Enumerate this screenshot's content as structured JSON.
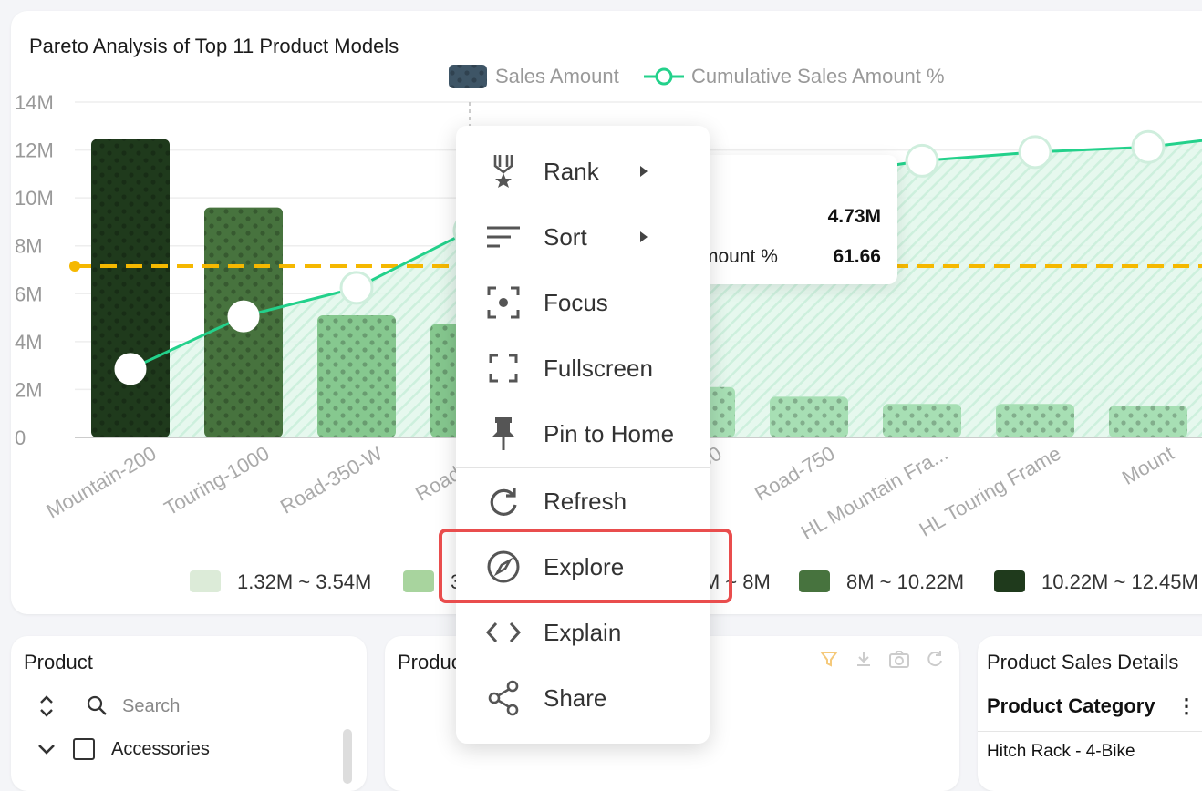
{
  "chart": {
    "title": "Pareto Analysis of Top 11 Product Models",
    "legend": {
      "bar": "Sales Amount",
      "line": "Cumulative Sales Amount %"
    },
    "y_ticks": [
      "14M",
      "12M",
      "10M",
      "8M",
      "6M",
      "4M",
      "2M",
      "0"
    ],
    "categories": [
      "Mountain-200",
      "Touring-1000",
      "Road-350-W",
      "Road-250",
      "Touring-2000",
      "Road-750",
      "HL Mountain Fra...",
      "HL Touring Frame",
      "Mount"
    ],
    "color_legend": [
      "1.32M ~ 3.54M",
      "3.54M ~ 5.77M",
      "5.77M ~ 8M",
      "8M ~ 10.22M",
      "10.22M ~ 12.45M"
    ],
    "colors": {
      "bar_darkest": "#1f3a1c",
      "bar_dark": "#47733e",
      "bar_mid": "#86c88f",
      "bar_light": "#a7dfb4",
      "line": "#23d18b",
      "threshold": "#f5b800"
    }
  },
  "chart_data": {
    "type": "bar",
    "title": "Pareto Analysis of Top 11 Product Models",
    "categories": [
      "Mountain-200",
      "Touring-1000",
      "Road-350-W",
      "Road-250",
      "",
      "Touring-2000",
      "Road-750",
      "HL Mountain Fra...",
      "HL Touring Frame",
      "Mount"
    ],
    "series": [
      {
        "name": "Sales Amount",
        "values": [
          12.45,
          9.6,
          5.1,
          4.73,
          2.4,
          2.1,
          1.7,
          1.4,
          1.4,
          1.32
        ]
      },
      {
        "name": "Cumulative Sales Amount %",
        "values": [
          20.4,
          36.1,
          44.6,
          61.66,
          null,
          null,
          null,
          82.5,
          85.1,
          86.6
        ]
      }
    ],
    "ylim": [
      0,
      14
    ],
    "threshold": 7
  },
  "tooltip": {
    "row1_value": "4.73M",
    "row2_label": "mount %",
    "row2_value": "61.66"
  },
  "menu": {
    "items": [
      {
        "label": "Rank"
      },
      {
        "label": "Sort"
      },
      {
        "label": "Focus"
      },
      {
        "label": "Fullscreen"
      },
      {
        "label": "Pin to Home"
      },
      {
        "label": "Refresh"
      },
      {
        "label": "Explore"
      },
      {
        "label": "Explain"
      },
      {
        "label": "Share"
      }
    ]
  },
  "product_panel": {
    "title": "Product",
    "search_placeholder": "Search",
    "tree_item": "Accessories"
  },
  "product2_panel": {
    "title": "Produc"
  },
  "details_panel": {
    "title": "Product Sales Details",
    "column_header": "Product Category",
    "first_cell": "Hitch Rack - 4-Bike"
  }
}
